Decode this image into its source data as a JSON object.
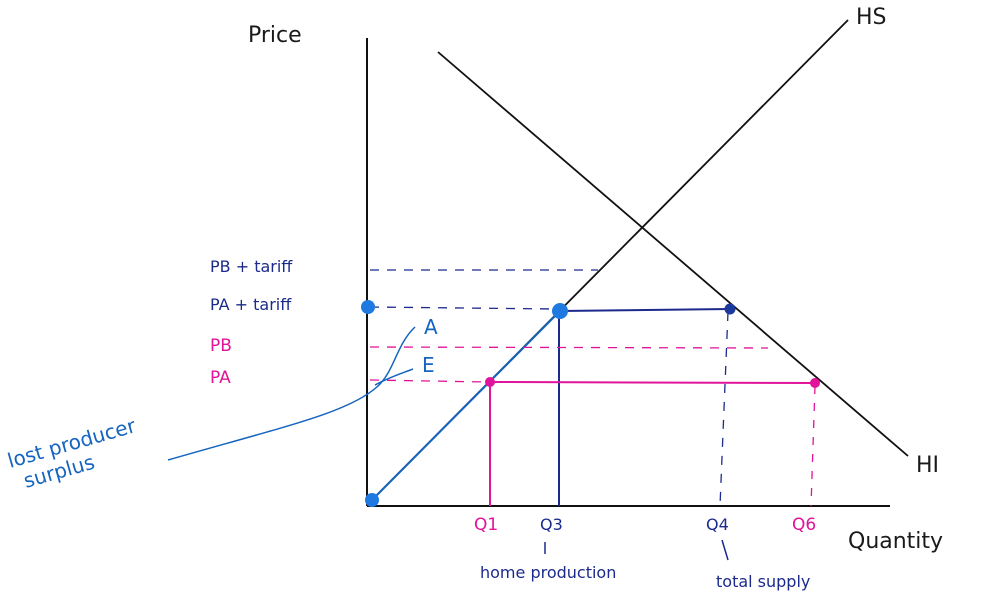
{
  "colors": {
    "axis": "#111111",
    "curve": "#111111",
    "navy": "#1b2a8c",
    "blue": "#1565c0",
    "dot_blue": "#1e7ae0",
    "pink": "#e0139a"
  },
  "axes": {
    "y_label": "Price",
    "x_label": "Quantity"
  },
  "curves": {
    "supply_label": "HS",
    "demand_label": "HI"
  },
  "price_labels": {
    "pb_tariff": "PB + tariff",
    "pa_tariff": "PA + tariff",
    "pb": "PB",
    "pa": "PA"
  },
  "quantity_labels": {
    "q1": "Q1",
    "q3": "Q3",
    "q4": "Q4",
    "q6": "Q6"
  },
  "annotations": {
    "home_production": "home production",
    "total_supply": "total supply",
    "lost_producer_surplus_line1": "lost producer",
    "lost_producer_surplus_line2": "surplus",
    "area_a": "A",
    "area_e": "E"
  }
}
